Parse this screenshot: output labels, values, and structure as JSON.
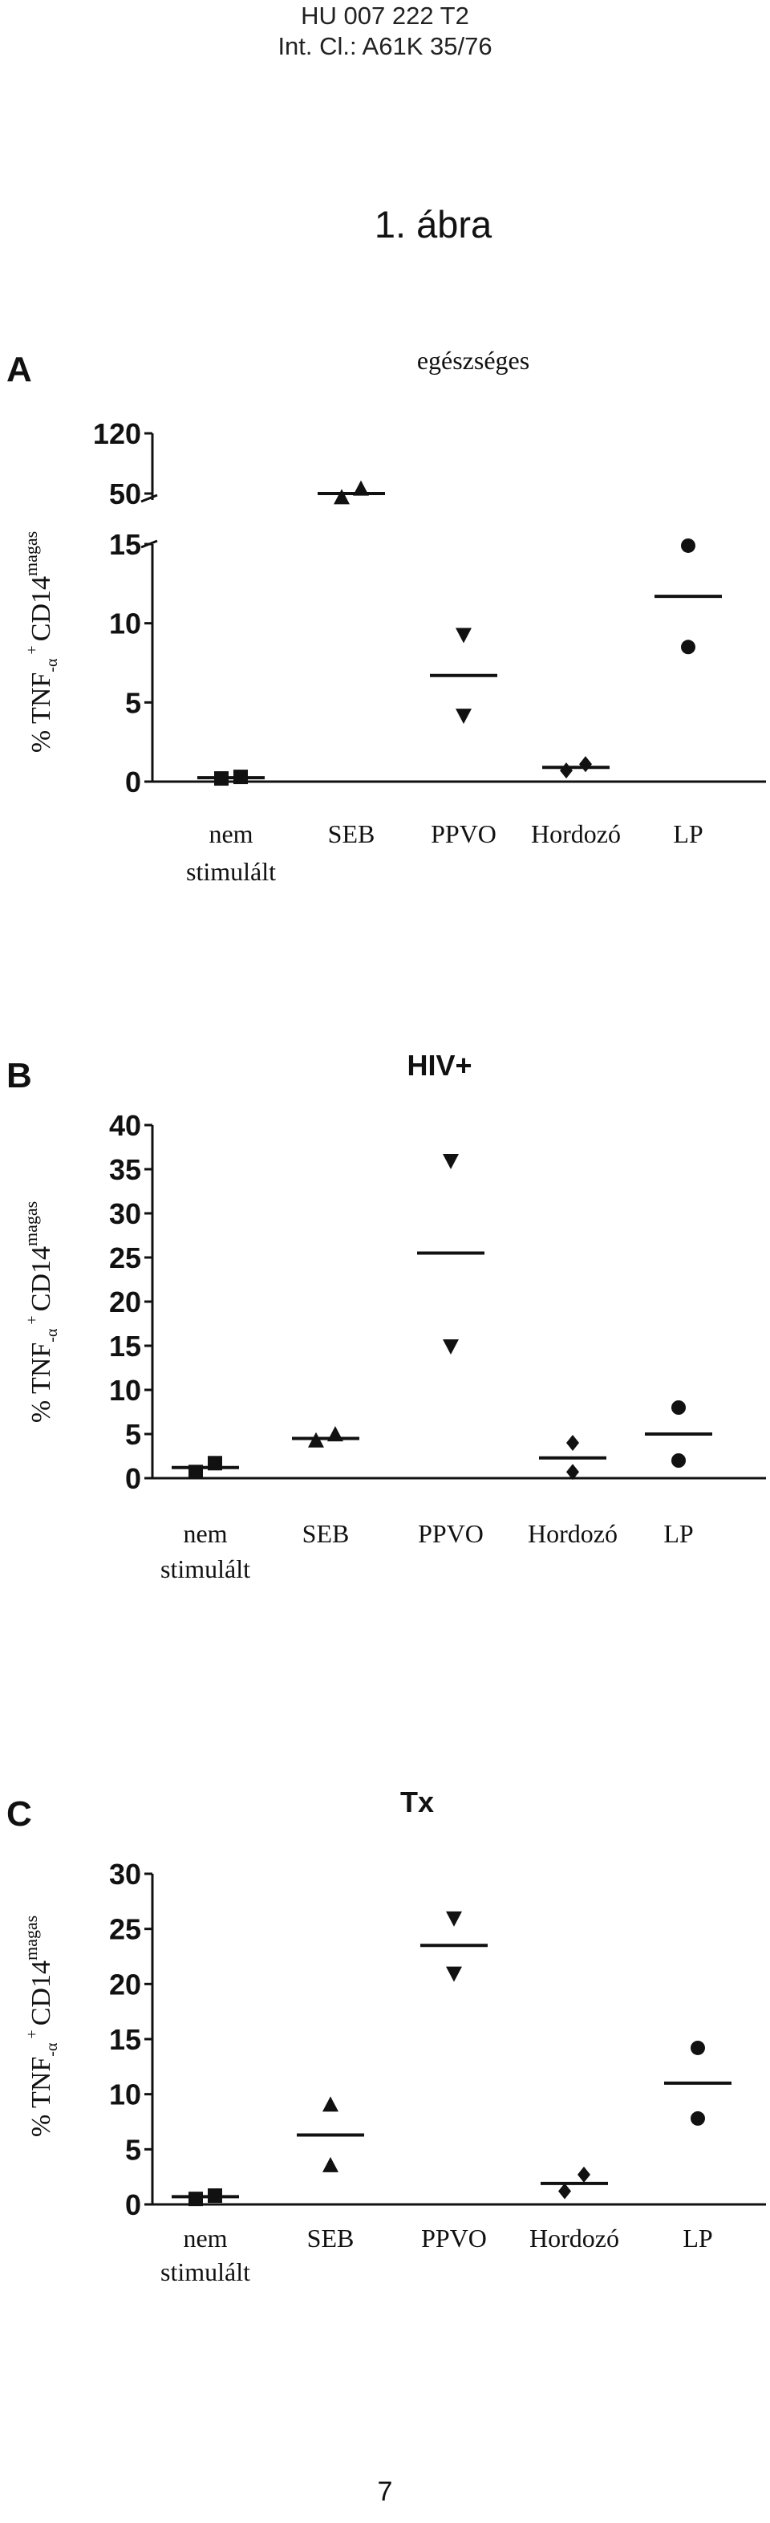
{
  "header": {
    "line1": "HU 007 222 T2",
    "line2": "Int. Cl.: A61K 35/76"
  },
  "figure_title": "1. ábra",
  "page_number": "7",
  "colors": {
    "ink": "#111111"
  },
  "chart_data": [
    {
      "type": "scatter",
      "panel_letter": "A",
      "title": "egészséges",
      "ylabel_parts": {
        "pct": "%",
        "tnf": "TNF",
        "plus": "+",
        "alpha": "-α",
        "cd": "CD14",
        "sup": "magas"
      },
      "categories": [
        "nem|stimulált",
        "SEB",
        "PPVO",
        "Hordozó",
        "LP"
      ],
      "y_ticks": [
        "0",
        "5",
        "10",
        "15",
        "50",
        "120"
      ],
      "broken_axis": true,
      "ylim_lower": [
        0,
        15
      ],
      "ylim_upper": [
        50,
        120
      ],
      "series": [
        {
          "category": "nem|stimulált",
          "marker": "square",
          "points": [
            0.2,
            0.3
          ],
          "mean": 0.25
        },
        {
          "category": "SEB",
          "marker": "triangle-up",
          "points": [
            45,
            55
          ],
          "mean": 50
        },
        {
          "category": "PPVO",
          "marker": "triangle-down",
          "points": [
            9.3,
            4.2
          ],
          "mean": 6.7
        },
        {
          "category": "Hordozó",
          "marker": "diamond",
          "points": [
            0.7,
            1.1
          ],
          "mean": 0.9
        },
        {
          "category": "LP",
          "marker": "circle",
          "points": [
            14.9,
            8.5
          ],
          "mean": 11.7
        }
      ]
    },
    {
      "type": "scatter",
      "panel_letter": "B",
      "title": "HIV+",
      "ylabel_parts": {
        "pct": "%",
        "tnf": "TNF",
        "plus": "+",
        "alpha": "-α",
        "cd": "CD14",
        "sup": "magas"
      },
      "categories": [
        "nem|stimulált",
        "SEB",
        "PPVO",
        "Hordozó",
        "LP"
      ],
      "y_ticks": [
        "0",
        "5",
        "10",
        "15",
        "20",
        "25",
        "30",
        "35",
        "40"
      ],
      "ylim": [
        0,
        40
      ],
      "series": [
        {
          "category": "nem|stimulált",
          "marker": "square",
          "points": [
            0.7,
            1.7
          ],
          "mean": 1.2
        },
        {
          "category": "SEB",
          "marker": "triangle-up",
          "points": [
            4.2,
            4.9
          ],
          "mean": 4.5
        },
        {
          "category": "PPVO",
          "marker": "triangle-down",
          "points": [
            36,
            15
          ],
          "mean": 25.5
        },
        {
          "category": "Hordozó",
          "marker": "diamond",
          "points": [
            4,
            0.7
          ],
          "mean": 2.3
        },
        {
          "category": "LP",
          "marker": "circle",
          "points": [
            8,
            2
          ],
          "mean": 5
        }
      ]
    },
    {
      "type": "scatter",
      "panel_letter": "C",
      "title": "Tx",
      "ylabel_parts": {
        "pct": "%",
        "tnf": "TNF",
        "plus": "+",
        "alpha": "-α",
        "cd": "CD14",
        "sup": "magas"
      },
      "categories": [
        "nem|stimulált",
        "SEB",
        "PPVO",
        "Hordozó",
        "LP"
      ],
      "y_ticks": [
        "0",
        "5",
        "10",
        "15",
        "20",
        "25",
        "30"
      ],
      "ylim": [
        0,
        30
      ],
      "series": [
        {
          "category": "nem|stimulált",
          "marker": "square",
          "points": [
            0.5,
            0.8
          ],
          "mean": 0.7
        },
        {
          "category": "SEB",
          "marker": "triangle-up",
          "points": [
            9,
            3.5
          ],
          "mean": 6.3
        },
        {
          "category": "PPVO",
          "marker": "triangle-down",
          "points": [
            26,
            21
          ],
          "mean": 23.5
        },
        {
          "category": "Hordozó",
          "marker": "diamond",
          "points": [
            1.2,
            2.7
          ],
          "mean": 1.9
        },
        {
          "category": "LP",
          "marker": "circle",
          "points": [
            14.2,
            7.8
          ],
          "mean": 11
        }
      ]
    }
  ]
}
